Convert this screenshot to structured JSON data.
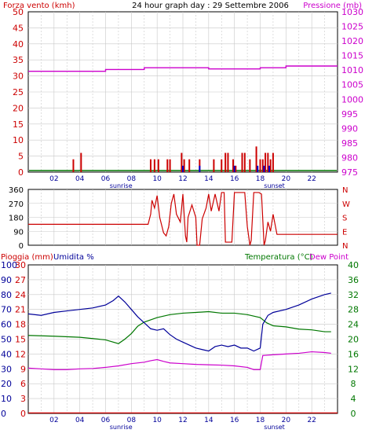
{
  "header": {
    "left_label": "Forza vento (kmh)",
    "title": "24 hour graph day : 29 Settembre 2006",
    "right_label": "Pressione (mb)"
  },
  "colors": {
    "wind": "#cc0000",
    "gust": "#0000cc",
    "pressure": "#cc00cc",
    "temperature": "#007700",
    "humidity": "#000099",
    "dewpoint": "#cc00cc",
    "rain": "#cc0000",
    "grid": "#c8c8c8",
    "frame": "#000000"
  },
  "chart_data": [
    {
      "type": "bar",
      "name": "wind-pressure",
      "left_axis_label": "Forza vento (kmh)",
      "right_axis_label": "Pressione (mb)",
      "ylim_left": [
        0,
        50
      ],
      "yticks_left": [
        "0",
        "5",
        "10",
        "15",
        "20",
        "25",
        "30",
        "35",
        "40",
        "45",
        "50"
      ],
      "ylim_right": [
        975,
        1030
      ],
      "yticks_right": [
        "975",
        "980",
        "985",
        "990",
        "995",
        "1000",
        "1005",
        "1010",
        "1015",
        "1020",
        "1025",
        "1030"
      ],
      "x_range": [
        0,
        24
      ],
      "x_ticks": [
        "02",
        "04",
        "06",
        "08",
        "10",
        "12",
        "14",
        "16",
        "18",
        "20",
        "22"
      ],
      "sunrise_label": "sunrise",
      "sunset_label": "sunset",
      "sunrise_hour": 7.2,
      "sunset_hour": 19.1,
      "wind_bars": [
        [
          3.5,
          4
        ],
        [
          4.1,
          6
        ],
        [
          9.5,
          4
        ],
        [
          9.8,
          4
        ],
        [
          10.1,
          4
        ],
        [
          10.8,
          4
        ],
        [
          11.0,
          4
        ],
        [
          11.9,
          6
        ],
        [
          12.1,
          4
        ],
        [
          12.5,
          4
        ],
        [
          13.3,
          4
        ],
        [
          14.4,
          4
        ],
        [
          15.0,
          4
        ],
        [
          15.3,
          6
        ],
        [
          15.5,
          6
        ],
        [
          15.9,
          4
        ],
        [
          16.1,
          2
        ],
        [
          16.6,
          6
        ],
        [
          16.8,
          6
        ],
        [
          17.2,
          4
        ],
        [
          17.7,
          8
        ],
        [
          18.0,
          4
        ],
        [
          18.2,
          4
        ],
        [
          18.4,
          6
        ],
        [
          18.6,
          6
        ],
        [
          18.8,
          4
        ],
        [
          19.0,
          6
        ]
      ],
      "gust_bars": [
        [
          12.0,
          2
        ],
        [
          13.3,
          2
        ],
        [
          16.0,
          2
        ],
        [
          17.8,
          2
        ],
        [
          18.3,
          2
        ],
        [
          18.7,
          2
        ]
      ],
      "wind_baseline": 0.5,
      "pressure_steps": [
        [
          0,
          1009.6
        ],
        [
          6.0,
          1010.2
        ],
        [
          9.0,
          1010.8
        ],
        [
          14.0,
          1010.4
        ],
        [
          18.0,
          1010.8
        ],
        [
          20.0,
          1011.4
        ],
        [
          24,
          1011.4
        ]
      ]
    },
    {
      "type": "line",
      "name": "wind-direction",
      "ylim": [
        0,
        360
      ],
      "yticks": [
        "0",
        "90",
        "180",
        "270",
        "360"
      ],
      "compass": [
        "N",
        "W",
        "S",
        "E",
        "N"
      ],
      "direction": [
        [
          0,
          135
        ],
        [
          9.3,
          135
        ],
        [
          9.5,
          200
        ],
        [
          9.6,
          290
        ],
        [
          9.8,
          240
        ],
        [
          10.0,
          320
        ],
        [
          10.2,
          180
        ],
        [
          10.5,
          80
        ],
        [
          10.7,
          60
        ],
        [
          10.9,
          120
        ],
        [
          11.1,
          270
        ],
        [
          11.3,
          330
        ],
        [
          11.5,
          200
        ],
        [
          11.8,
          150
        ],
        [
          12.0,
          330
        ],
        [
          12.2,
          60
        ],
        [
          12.3,
          20
        ],
        [
          12.4,
          180
        ],
        [
          12.7,
          260
        ],
        [
          13.0,
          180
        ],
        [
          13.1,
          0
        ],
        [
          13.3,
          0
        ],
        [
          13.5,
          170
        ],
        [
          13.8,
          240
        ],
        [
          14.0,
          330
        ],
        [
          14.2,
          220
        ],
        [
          14.5,
          330
        ],
        [
          14.8,
          220
        ],
        [
          15.0,
          340
        ],
        [
          15.2,
          340
        ],
        [
          15.3,
          20
        ],
        [
          15.8,
          20
        ],
        [
          16.0,
          340
        ],
        [
          16.8,
          340
        ],
        [
          17.0,
          120
        ],
        [
          17.2,
          0
        ],
        [
          17.3,
          30
        ],
        [
          17.5,
          340
        ],
        [
          17.9,
          340
        ],
        [
          18.1,
          330
        ],
        [
          18.3,
          0
        ],
        [
          18.4,
          30
        ],
        [
          18.6,
          150
        ],
        [
          18.8,
          90
        ],
        [
          19.0,
          200
        ],
        [
          19.3,
          70
        ],
        [
          19.5,
          70
        ],
        [
          24,
          70
        ]
      ]
    },
    {
      "type": "line",
      "name": "rain-humidity-temperature",
      "left_axis_label": "Pioggia (mm)",
      "humidity_label": "Umidita %",
      "temperature_label": "Temperatura (°C)",
      "dewpoint_label": "Dew Point",
      "ylim_rain": [
        0,
        30
      ],
      "yticks_rain": [
        "0",
        "3",
        "6",
        "9",
        "12",
        "15",
        "18",
        "21",
        "24",
        "27",
        "30"
      ],
      "ylim_humidity": [
        0,
        100
      ],
      "yticks_humidity": [
        "0",
        "10",
        "20",
        "30",
        "40",
        "50",
        "60",
        "70",
        "80",
        "90",
        "100"
      ],
      "ylim_temperature": [
        0,
        40
      ],
      "yticks_temperature": [
        "0",
        "4",
        "8",
        "12",
        "16",
        "20",
        "24",
        "28",
        "32",
        "36",
        "40"
      ],
      "humidity": [
        [
          0,
          67
        ],
        [
          1.0,
          66
        ],
        [
          2.0,
          68
        ],
        [
          3.0,
          69
        ],
        [
          4.0,
          70
        ],
        [
          5.0,
          71
        ],
        [
          6.0,
          73
        ],
        [
          6.6,
          76
        ],
        [
          7.0,
          79
        ],
        [
          7.5,
          75
        ],
        [
          8.0,
          70
        ],
        [
          8.5,
          65
        ],
        [
          9.0,
          61
        ],
        [
          9.5,
          57
        ],
        [
          10.0,
          56
        ],
        [
          10.5,
          57
        ],
        [
          11.0,
          53
        ],
        [
          11.5,
          50
        ],
        [
          12.0,
          48
        ],
        [
          12.5,
          46
        ],
        [
          13.0,
          44
        ],
        [
          13.5,
          43
        ],
        [
          14.0,
          42
        ],
        [
          14.5,
          45
        ],
        [
          15.0,
          46
        ],
        [
          15.5,
          45
        ],
        [
          16.0,
          46
        ],
        [
          16.5,
          44
        ],
        [
          17.0,
          44
        ],
        [
          17.5,
          42
        ],
        [
          18.0,
          44
        ],
        [
          18.2,
          60
        ],
        [
          18.6,
          66
        ],
        [
          19.0,
          68
        ],
        [
          20.0,
          70
        ],
        [
          21.0,
          73
        ],
        [
          22.0,
          77
        ],
        [
          23.0,
          80
        ],
        [
          23.5,
          81
        ]
      ],
      "temperature": [
        [
          0,
          21.0
        ],
        [
          2.0,
          20.8
        ],
        [
          4.0,
          20.5
        ],
        [
          6.0,
          19.8
        ],
        [
          7.0,
          18.8
        ],
        [
          7.5,
          20.0
        ],
        [
          8.0,
          21.5
        ],
        [
          8.5,
          23.5
        ],
        [
          9.0,
          24.6
        ],
        [
          9.5,
          25.2
        ],
        [
          10.0,
          25.8
        ],
        [
          10.5,
          26.2
        ],
        [
          11.0,
          26.6
        ],
        [
          12.0,
          27.0
        ],
        [
          13.0,
          27.2
        ],
        [
          14.0,
          27.4
        ],
        [
          15.0,
          27.0
        ],
        [
          16.0,
          27.0
        ],
        [
          17.0,
          26.6
        ],
        [
          18.0,
          25.8
        ],
        [
          18.5,
          24.4
        ],
        [
          19.0,
          23.6
        ],
        [
          20.0,
          23.3
        ],
        [
          21.0,
          22.7
        ],
        [
          22.0,
          22.5
        ],
        [
          23.0,
          22.0
        ],
        [
          23.5,
          22.0
        ]
      ],
      "dewpoint": [
        [
          0,
          12.2
        ],
        [
          1.0,
          12.0
        ],
        [
          2.0,
          11.8
        ],
        [
          3.0,
          11.8
        ],
        [
          4.0,
          12.0
        ],
        [
          5.0,
          12.1
        ],
        [
          6.0,
          12.4
        ],
        [
          7.0,
          12.8
        ],
        [
          8.0,
          13.4
        ],
        [
          9.0,
          13.8
        ],
        [
          9.5,
          14.2
        ],
        [
          10.0,
          14.5
        ],
        [
          10.5,
          14.0
        ],
        [
          11.0,
          13.6
        ],
        [
          12.0,
          13.4
        ],
        [
          13.0,
          13.2
        ],
        [
          14.0,
          13.1
        ],
        [
          15.0,
          13.0
        ],
        [
          16.0,
          12.8
        ],
        [
          17.0,
          12.4
        ],
        [
          17.5,
          11.8
        ],
        [
          18.0,
          11.8
        ],
        [
          18.2,
          15.6
        ],
        [
          19.0,
          15.8
        ],
        [
          20.0,
          16.0
        ],
        [
          21.0,
          16.2
        ],
        [
          22.0,
          16.6
        ],
        [
          23.0,
          16.4
        ],
        [
          23.5,
          16.2
        ]
      ],
      "rain": [
        [
          0,
          0.1
        ],
        [
          24,
          0.1
        ]
      ]
    }
  ]
}
